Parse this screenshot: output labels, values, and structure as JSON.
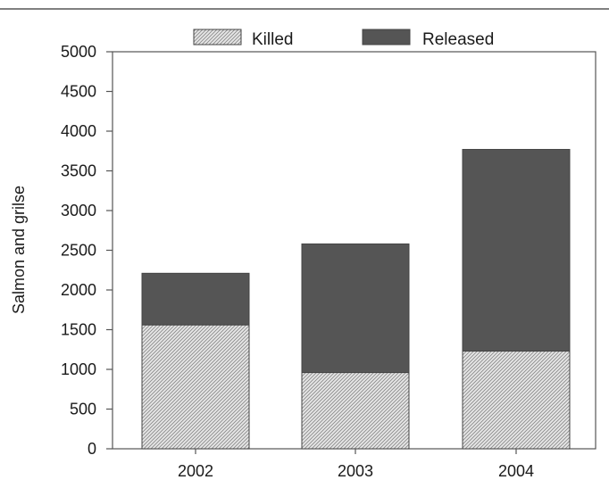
{
  "chart_data": {
    "type": "bar",
    "stacked": true,
    "categories": [
      "2002",
      "2003",
      "2004"
    ],
    "series": [
      {
        "name": "Killed",
        "values": [
          1560,
          960,
          1230
        ],
        "color": "#d8d8d8",
        "pattern": "diagonal-hatch"
      },
      {
        "name": "Released",
        "values": [
          650,
          1620,
          2540
        ],
        "color": "#555555",
        "pattern": "solid"
      }
    ],
    "ylabel": "Salmon and grilse",
    "xlabel": "",
    "ylim": [
      0,
      5000
    ],
    "yticks": [
      0,
      500,
      1000,
      1500,
      2000,
      2500,
      3000,
      3500,
      4000,
      4500,
      5000
    ],
    "grid": false,
    "legend_position": "top"
  }
}
